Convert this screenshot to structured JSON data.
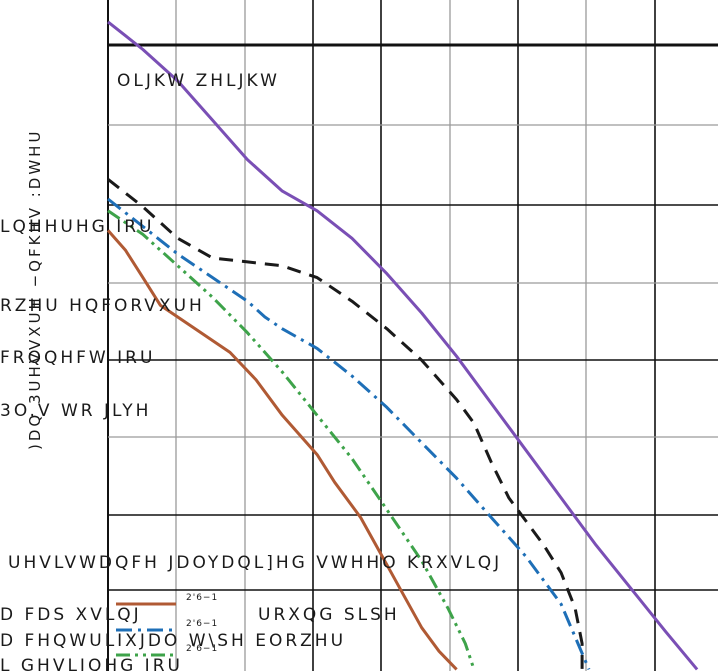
{
  "chart_data": {
    "type": "line",
    "ylabel": ")DQ 3UHVVXUH −QFKHV :DWHU",
    "annotations": [
      "OLJKW ZHLJKW",
      "LQHHUHG IRU",
      "RZHU HQFORVXUH",
      "FRQQHFW IRU",
      "3O.V WR JLYH",
      "UHVLVWDQFH JDOYDQL]HG VWHHO KRXVLQJ",
      "D FDS XVLQJ",
      "URXQG SLSH",
      "D FHQWULIXJDO W\\SH EORZHU",
      "L GHVLJQHG IRU"
    ],
    "legend": [
      {
        "label": "D FDS XVLQJ",
        "tag": "2'6−1",
        "color": "#b05a34",
        "dash": "solid"
      },
      {
        "label": "D FHQWULIXJDO",
        "tag": "2'6−1",
        "color": "#1e6fb7",
        "dash": "dashdot"
      },
      {
        "label": "L GHVLJQHG",
        "tag": "2'6−1",
        "color": "#3ea34a",
        "dash": "dashdotdot"
      }
    ],
    "series": [
      {
        "color": "#7a4fb5",
        "dash": "solid",
        "points": [
          [
            0.0,
            8.95
          ],
          [
            0.2,
            8.6
          ],
          [
            0.4,
            8.2
          ],
          [
            0.6,
            7.7
          ],
          [
            0.8,
            7.2
          ],
          [
            1.0,
            6.8
          ],
          [
            1.2,
            6.55
          ],
          [
            1.4,
            6.2
          ],
          [
            1.6,
            5.75
          ],
          [
            1.8,
            5.25
          ],
          [
            2.0,
            4.7
          ],
          [
            2.2,
            4.1
          ],
          [
            2.4,
            3.5
          ],
          [
            2.6,
            2.9
          ],
          [
            2.8,
            2.3
          ],
          [
            3.0,
            1.75
          ],
          [
            3.2,
            1.2
          ],
          [
            3.38,
            0.72
          ]
        ]
      },
      {
        "color": "#1a1a1a",
        "dash": "dashed",
        "points": [
          [
            0.0,
            6.95
          ],
          [
            0.2,
            6.6
          ],
          [
            0.4,
            6.2
          ],
          [
            0.6,
            5.95
          ],
          [
            0.8,
            5.9
          ],
          [
            1.0,
            5.85
          ],
          [
            1.2,
            5.7
          ],
          [
            1.4,
            5.4
          ],
          [
            1.6,
            5.05
          ],
          [
            1.8,
            4.65
          ],
          [
            2.0,
            4.15
          ],
          [
            2.1,
            3.85
          ],
          [
            2.2,
            3.35
          ],
          [
            2.3,
            2.9
          ],
          [
            2.4,
            2.6
          ],
          [
            2.5,
            2.3
          ],
          [
            2.6,
            1.95
          ],
          [
            2.68,
            1.5
          ],
          [
            2.72,
            1.05
          ],
          [
            2.72,
            0.72
          ]
        ]
      },
      {
        "color": "#1e6fb7",
        "dash": "dashdot",
        "points": [
          [
            0.0,
            6.7
          ],
          [
            0.2,
            6.35
          ],
          [
            0.4,
            6.0
          ],
          [
            0.6,
            5.7
          ],
          [
            0.8,
            5.4
          ],
          [
            0.9,
            5.2
          ],
          [
            1.0,
            5.05
          ],
          [
            1.2,
            4.8
          ],
          [
            1.4,
            4.45
          ],
          [
            1.6,
            4.05
          ],
          [
            1.8,
            3.6
          ],
          [
            2.0,
            3.15
          ],
          [
            2.2,
            2.65
          ],
          [
            2.4,
            2.15
          ],
          [
            2.6,
            1.55
          ],
          [
            2.76,
            0.72
          ]
        ]
      },
      {
        "color": "#3ea34a",
        "dash": "dashdotdot",
        "points": [
          [
            0.0,
            6.55
          ],
          [
            0.2,
            6.25
          ],
          [
            0.4,
            5.85
          ],
          [
            0.6,
            5.45
          ],
          [
            0.8,
            5.0
          ],
          [
            1.0,
            4.5
          ],
          [
            1.2,
            3.95
          ],
          [
            1.4,
            3.4
          ],
          [
            1.6,
            2.75
          ],
          [
            1.8,
            2.1
          ],
          [
            1.95,
            1.5
          ],
          [
            2.05,
            1.05
          ],
          [
            2.1,
            0.72
          ]
        ]
      },
      {
        "color": "#b05a34",
        "dash": "solid",
        "points": [
          [
            0.0,
            6.3
          ],
          [
            0.1,
            6.05
          ],
          [
            0.2,
            5.7
          ],
          [
            0.3,
            5.35
          ],
          [
            0.5,
            5.05
          ],
          [
            0.7,
            4.75
          ],
          [
            0.85,
            4.4
          ],
          [
            1.0,
            3.95
          ],
          [
            1.2,
            3.45
          ],
          [
            1.3,
            3.1
          ],
          [
            1.45,
            2.65
          ],
          [
            1.6,
            2.05
          ],
          [
            1.7,
            1.65
          ],
          [
            1.8,
            1.25
          ],
          [
            1.9,
            0.95
          ],
          [
            2.0,
            0.72
          ]
        ]
      }
    ],
    "xlim": [
      0,
      3.5
    ],
    "ylim": [
      0.7,
      9.0
    ],
    "grid": true
  }
}
